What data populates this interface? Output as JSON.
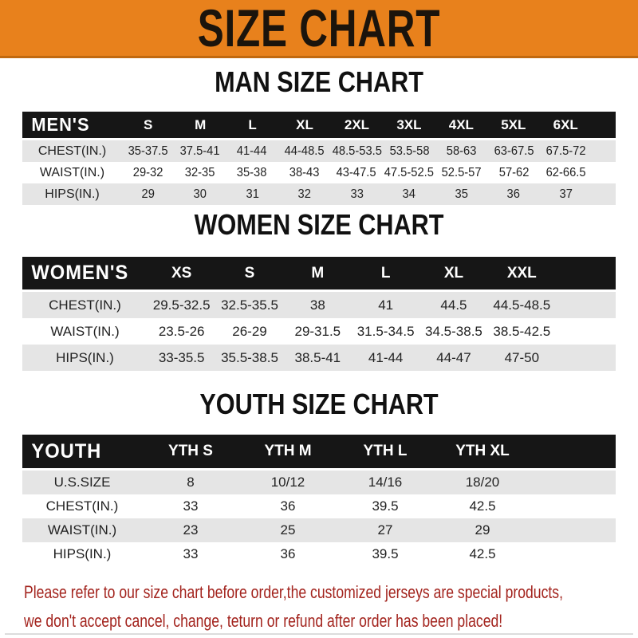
{
  "banner": {
    "title": "SIZE CHART"
  },
  "sections": [
    {
      "heading": "MAN SIZE CHART",
      "header_label": "MEN'S",
      "columns": [
        "S",
        "M",
        "L",
        "XL",
        "2XL",
        "3XL",
        "4XL",
        "5XL",
        "6XL"
      ],
      "rows": [
        {
          "label": "CHEST(IN.)",
          "values": [
            "35-37.5",
            "37.5-41",
            "41-44",
            "44-48.5",
            "48.5-53.5",
            "53.5-58",
            "58-63",
            "63-67.5",
            "67.5-72"
          ]
        },
        {
          "label": "WAIST(IN.)",
          "values": [
            "29-32",
            "32-35",
            "35-38",
            "38-43",
            "43-47.5",
            "47.5-52.5",
            "52.5-57",
            "57-62",
            "62-66.5"
          ]
        },
        {
          "label": "HIPS(IN.)",
          "values": [
            "29",
            "30",
            "31",
            "32",
            "33",
            "34",
            "35",
            "36",
            "37"
          ]
        }
      ]
    },
    {
      "heading": "WOMEN SIZE CHART",
      "header_label": "WOMEN'S",
      "columns": [
        "XS",
        "S",
        "M",
        "L",
        "XL",
        "XXL"
      ],
      "rows": [
        {
          "label": "CHEST(IN.)",
          "values": [
            "29.5-32.5",
            "32.5-35.5",
            "38",
            "41",
            "44.5",
            "44.5-48.5"
          ]
        },
        {
          "label": "WAIST(IN.)",
          "values": [
            "23.5-26",
            "26-29",
            "29-31.5",
            "31.5-34.5",
            "34.5-38.5",
            "38.5-42.5"
          ]
        },
        {
          "label": "HIPS(IN.)",
          "values": [
            "33-35.5",
            "35.5-38.5",
            "38.5-41",
            "41-44",
            "44-47",
            "47-50"
          ]
        }
      ]
    },
    {
      "heading": "YOUTH SIZE CHART",
      "header_label": "YOUTH",
      "columns": [
        "YTH S",
        "YTH M",
        "YTH L",
        "YTH XL"
      ],
      "rows": [
        {
          "label": "U.S.SIZE",
          "values": [
            "8",
            "10/12",
            "14/16",
            "18/20"
          ]
        },
        {
          "label": "CHEST(IN.)",
          "values": [
            "33",
            "36",
            "39.5",
            "42.5"
          ]
        },
        {
          "label": "WAIST(IN.)",
          "values": [
            "23",
            "25",
            "27",
            "29"
          ]
        },
        {
          "label": "HIPS(IN.)",
          "values": [
            "33",
            "36",
            "39.5",
            "42.5"
          ]
        }
      ]
    }
  ],
  "footer": {
    "line1": "Please refer to our size chart before order,the customized jerseys are special products,",
    "line2": "we don't accept cancel, change, teturn or refund after order has been placed!"
  },
  "colors": {
    "banner_bg": "#E8811C",
    "banner_edge": "#C1690F",
    "header_bar": "#161616",
    "row_stripe": "#E5E5E5",
    "footer_red": "#A3241E"
  }
}
